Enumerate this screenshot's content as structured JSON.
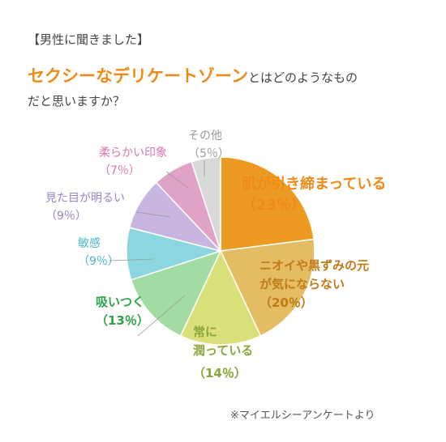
{
  "header": {
    "tag": "【男性に聞きました】",
    "title_accent": "セクシーなデリケートゾーン",
    "title_rest": "とはどのようなもの",
    "title_line2": "だと思いますか？"
  },
  "footnote": "※マイエルシーアンケートより",
  "chart_data": {
    "type": "pie",
    "title": "",
    "slices": [
      {
        "label": "肌が引き締まっている",
        "value": 23,
        "pct": "（23％）",
        "color": "#ec9a22",
        "label_color": "#ef8a18"
      },
      {
        "label": "ニオイや黒ずみの元が気にならない",
        "value": 20,
        "pct": "（20％）",
        "color": "#e3bc63",
        "label_color": "#c07a18"
      },
      {
        "label": "常に潤っている",
        "value": 14,
        "pct": "（14％）",
        "color": "#d9e07a",
        "label_color": "#8aa63a"
      },
      {
        "label": "吸いつく",
        "value": 13,
        "pct": "（13％）",
        "color": "#a3dca3",
        "label_color": "#2fa34a"
      },
      {
        "label": "敏感",
        "value": 9,
        "pct": "（9％）",
        "color": "#8cd6e0",
        "label_color": "#4ab8cc"
      },
      {
        "label": "見た目が明るい",
        "value": 9,
        "pct": "（9％）",
        "color": "#c9b6e0",
        "label_color": "#9a84c8"
      },
      {
        "label": "柔らかい印象",
        "value": 7,
        "pct": "（7％）",
        "color": "#e0a2c6",
        "label_color": "#d777b0"
      },
      {
        "label": "その他",
        "value": 5,
        "pct": "（5％）",
        "color": "#d9d9d9",
        "label_color": "#9a9a9a"
      }
    ]
  }
}
